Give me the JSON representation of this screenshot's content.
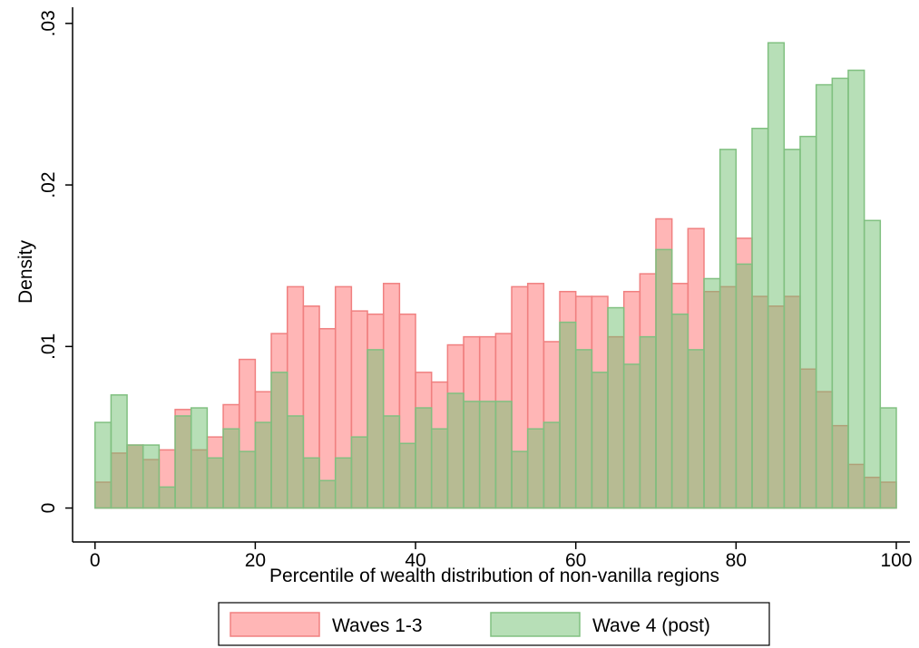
{
  "chart_data": {
    "type": "histogram",
    "x_label": "Percentile of wealth distribution of non-vanilla regions",
    "y_label": "Density",
    "bins": [
      0,
      2,
      4,
      6,
      8,
      10,
      12,
      14,
      16,
      18,
      20,
      22,
      24,
      26,
      28,
      30,
      32,
      34,
      36,
      38,
      40,
      42,
      44,
      46,
      48,
      50,
      52,
      54,
      56,
      58,
      60,
      62,
      64,
      66,
      68,
      70,
      72,
      74,
      76,
      78,
      80,
      82,
      84,
      86,
      88,
      90,
      92,
      94,
      96,
      98,
      100
    ],
    "series": [
      {
        "name": "Waves 1-3",
        "color": "#ff6e6e",
        "stroke": "#f08080",
        "values": [
          0.0016,
          0.0034,
          0.0039,
          0.003,
          0.0036,
          0.0061,
          0.0036,
          0.0044,
          0.0064,
          0.0092,
          0.0072,
          0.0108,
          0.0137,
          0.0125,
          0.0111,
          0.0137,
          0.0122,
          0.012,
          0.0139,
          0.012,
          0.0084,
          0.0078,
          0.0101,
          0.0106,
          0.0106,
          0.0108,
          0.0137,
          0.0139,
          0.0103,
          0.0134,
          0.0131,
          0.0131,
          0.0106,
          0.0134,
          0.0145,
          0.0179,
          0.0139,
          0.0173,
          0.0134,
          0.0137,
          0.0167,
          0.0131,
          0.0125,
          0.0131,
          0.0086,
          0.0072,
          0.0051,
          0.0027,
          0.0019,
          0.0016
        ]
      },
      {
        "name": "Wave 4 (post)",
        "color": "#70c070",
        "stroke": "#80c080",
        "values": [
          0.0053,
          0.007,
          0.0039,
          0.0039,
          0.0013,
          0.0057,
          0.0062,
          0.0031,
          0.0049,
          0.0035,
          0.0053,
          0.0084,
          0.0057,
          0.0031,
          0.0017,
          0.0031,
          0.0044,
          0.0098,
          0.0057,
          0.004,
          0.0062,
          0.0049,
          0.0071,
          0.0066,
          0.0066,
          0.0066,
          0.0035,
          0.0049,
          0.0053,
          0.0115,
          0.0098,
          0.0084,
          0.0124,
          0.0089,
          0.0106,
          0.016,
          0.012,
          0.0098,
          0.0142,
          0.0222,
          0.0151,
          0.0235,
          0.0288,
          0.0222,
          0.023,
          0.0262,
          0.0266,
          0.0271,
          0.0178,
          0.0062
        ]
      }
    ],
    "xlim": [
      -2.8,
      101.7
    ],
    "xticks": [
      0,
      20,
      40,
      60,
      80,
      100
    ],
    "ylim": [
      -0.0021,
      0.031
    ],
    "yticks": [
      0,
      {
        "value": 0.01,
        "label": ".01"
      },
      {
        "value": 0.02,
        "label": ".02"
      },
      {
        "value": 0.03,
        "label": ".03"
      }
    ]
  }
}
